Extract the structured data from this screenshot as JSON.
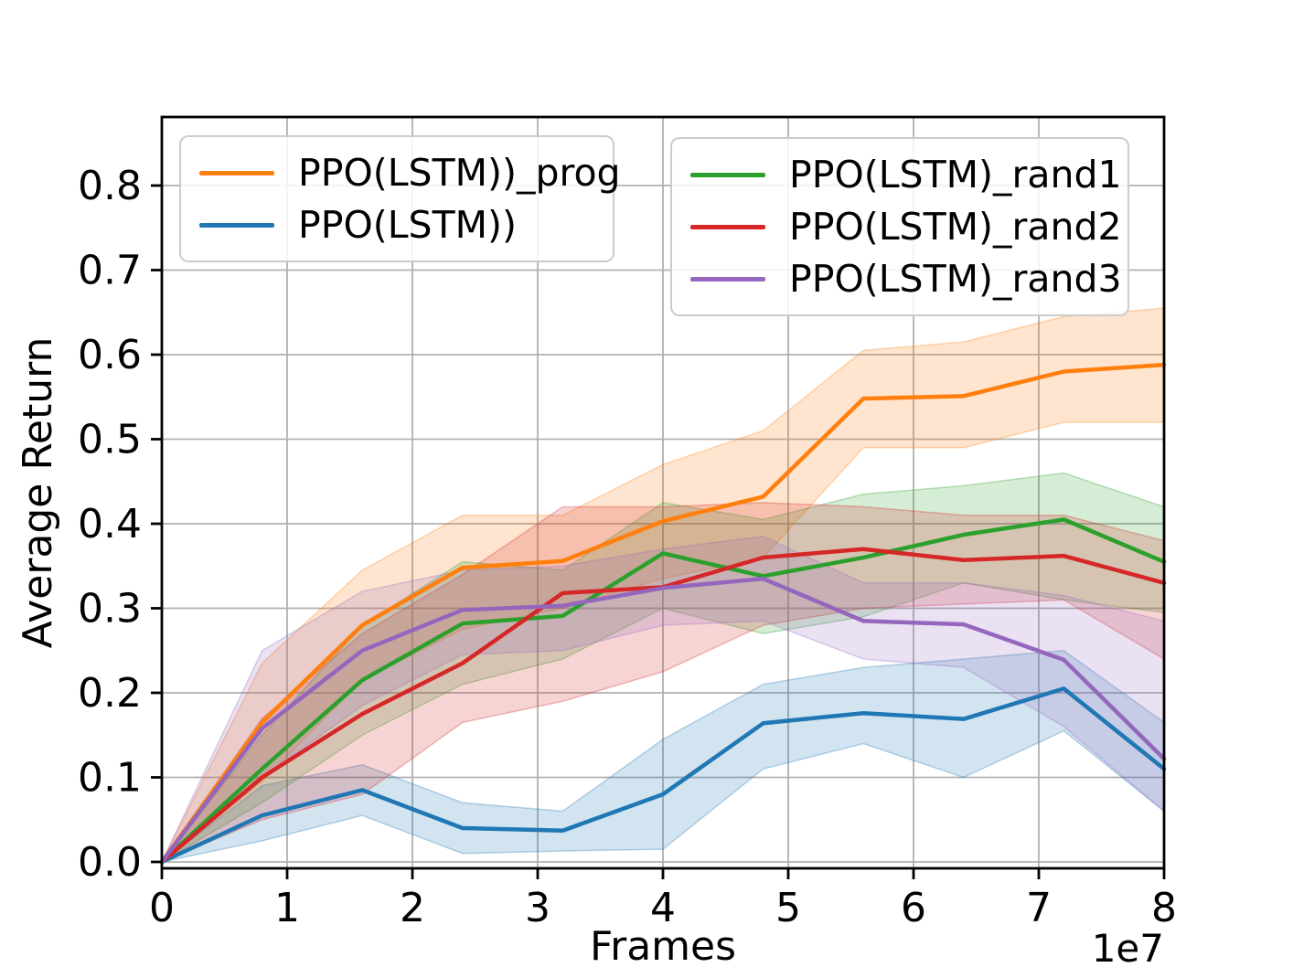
{
  "chart_data": {
    "type": "line",
    "title": "",
    "xlabel": "Frames",
    "ylabel": "Average Return",
    "x_offset_label": "1e7",
    "x_unit_multiplier": 10000000,
    "xlim": [
      0,
      8
    ],
    "ylim": [
      -0.008,
      0.881
    ],
    "grid": true,
    "grid_color": "#b0b0b0",
    "x_ticks": [
      0,
      1,
      2,
      3,
      4,
      5,
      6,
      7,
      8
    ],
    "x_tick_labels": [
      "0",
      "1",
      "2",
      "3",
      "4",
      "5",
      "6",
      "7",
      "8"
    ],
    "y_ticks": [
      0.0,
      0.1,
      0.2,
      0.3,
      0.4,
      0.5,
      0.6,
      0.7,
      0.8
    ],
    "y_tick_labels": [
      "0.0",
      "0.1",
      "0.2",
      "0.3",
      "0.4",
      "0.5",
      "0.6",
      "0.7",
      "0.8"
    ],
    "x": [
      0,
      0.8,
      1.6,
      2.4,
      3.2,
      4.0,
      4.8,
      5.6,
      6.4,
      7.2,
      8.0
    ],
    "series": [
      {
        "name": "PPO(LSTM))_prog",
        "color": "#ff7f0e",
        "values": [
          0,
          0.165,
          0.28,
          0.348,
          0.356,
          0.403,
          0.432,
          0.548,
          0.551,
          0.58,
          0.588
        ],
        "band_lower": [
          0,
          0.095,
          0.215,
          0.275,
          0.3,
          0.335,
          0.36,
          0.49,
          0.49,
          0.52,
          0.52
        ],
        "band_upper": [
          0,
          0.235,
          0.345,
          0.41,
          0.41,
          0.47,
          0.51,
          0.605,
          0.615,
          0.645,
          0.655
        ]
      },
      {
        "name": "PPO(LSTM))",
        "color": "#1f77b4",
        "values": [
          0,
          0.055,
          0.085,
          0.04,
          0.037,
          0.08,
          0.164,
          0.176,
          0.169,
          0.205,
          0.11
        ],
        "band_lower": [
          0,
          0.025,
          0.055,
          0.01,
          0.013,
          0.015,
          0.11,
          0.14,
          0.1,
          0.155,
          0.06
        ],
        "band_upper": [
          0,
          0.09,
          0.115,
          0.07,
          0.06,
          0.145,
          0.21,
          0.23,
          0.24,
          0.25,
          0.165
        ]
      },
      {
        "name": "PPO(LSTM)_rand1",
        "color": "#2ca02c",
        "values": [
          0,
          0.11,
          0.215,
          0.282,
          0.291,
          0.365,
          0.338,
          0.36,
          0.387,
          0.405,
          0.355
        ],
        "band_lower": [
          0,
          0.07,
          0.15,
          0.21,
          0.24,
          0.3,
          0.27,
          0.29,
          0.33,
          0.31,
          0.295
        ],
        "band_upper": [
          0,
          0.15,
          0.28,
          0.355,
          0.345,
          0.425,
          0.405,
          0.435,
          0.445,
          0.46,
          0.42
        ]
      },
      {
        "name": "PPO(LSTM)_rand2",
        "color": "#d62728",
        "values": [
          0,
          0.1,
          0.175,
          0.235,
          0.318,
          0.325,
          0.36,
          0.37,
          0.357,
          0.362,
          0.33
        ],
        "band_lower": [
          0,
          0.05,
          0.08,
          0.165,
          0.19,
          0.225,
          0.28,
          0.3,
          0.305,
          0.31,
          0.24
        ],
        "band_upper": [
          0,
          0.17,
          0.27,
          0.34,
          0.42,
          0.42,
          0.425,
          0.42,
          0.41,
          0.41,
          0.38
        ]
      },
      {
        "name": "PPO(LSTM)_rand3",
        "color": "#9467bd",
        "values": [
          0,
          0.158,
          0.25,
          0.298,
          0.303,
          0.324,
          0.335,
          0.285,
          0.281,
          0.239,
          0.122
        ],
        "band_lower": [
          0,
          0.1,
          0.185,
          0.245,
          0.25,
          0.28,
          0.285,
          0.24,
          0.23,
          0.16,
          0.06
        ],
        "band_upper": [
          0,
          0.25,
          0.32,
          0.345,
          0.35,
          0.37,
          0.385,
          0.33,
          0.33,
          0.315,
          0.285
        ]
      }
    ],
    "legend_position": "upper left, two boxes"
  },
  "style": {
    "background": "#ffffff",
    "spine_color": "#000000",
    "grid_color": "#b0b0b0",
    "band_alpha": 0.2
  }
}
